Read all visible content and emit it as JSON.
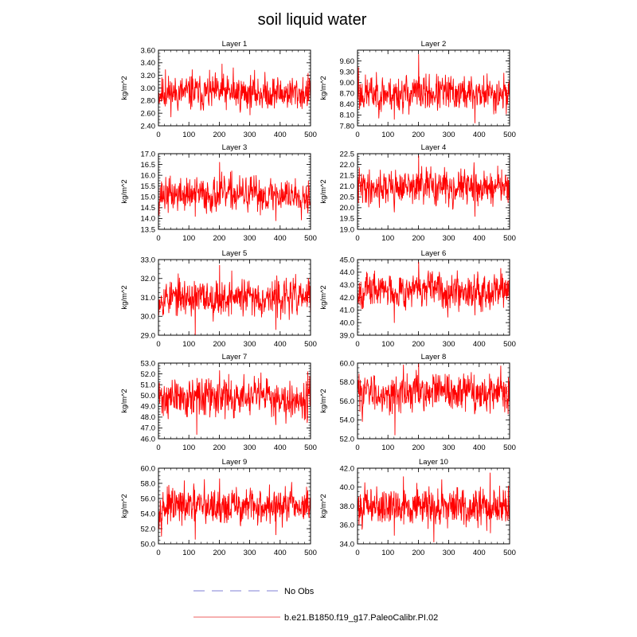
{
  "figure": {
    "title": "soil liquid water"
  },
  "legend": {
    "items": [
      {
        "label": "No Obs",
        "color": "#9999dd",
        "style": "dashed"
      },
      {
        "label": "b.e21.B1850.f19_g17.PaleoCalibr.PI.02",
        "color": "#f08080",
        "style": "solid"
      }
    ]
  },
  "chart_data": [
    {
      "type": "line",
      "title": "Layer 1",
      "ylabel": "kg/m^2",
      "xlim": [
        0,
        500
      ],
      "ylim": [
        2.4,
        3.6
      ],
      "xticks": [
        "0",
        "100",
        "200",
        "300",
        "400",
        "500"
      ],
      "yticks": [
        "2.40",
        "2.60",
        "2.80",
        "3.00",
        "3.20",
        "3.40",
        "3.60"
      ],
      "series": [
        {
          "color": "#ff0000",
          "n_points": 500,
          "mean": 2.92,
          "amplitude": 0.13,
          "seed": 11,
          "spikes": [
            [
              208,
              3.38
            ],
            [
              245,
              3.32
            ],
            [
              110,
              3.29
            ],
            [
              22,
              3.29
            ]
          ]
        }
      ]
    },
    {
      "type": "line",
      "title": "Layer 2",
      "ylabel": "kg/m^2",
      "xlim": [
        0,
        500
      ],
      "ylim": [
        7.8,
        9.9
      ],
      "xticks": [
        "0",
        "100",
        "200",
        "300",
        "400",
        "500"
      ],
      "yticks": [
        "7.80",
        "8.10",
        "8.40",
        "8.70",
        "9.00",
        "9.30",
        "9.60"
      ],
      "series": [
        {
          "color": "#ff0000",
          "n_points": 500,
          "mean": 8.7,
          "amplitude": 0.24,
          "seed": 23,
          "spikes": [
            [
              200,
              9.78
            ],
            [
              2,
              9.42
            ],
            [
              385,
              7.88
            ],
            [
              120,
              7.98
            ]
          ]
        }
      ]
    },
    {
      "type": "line",
      "title": "Layer 3",
      "ylabel": "kg/m^2",
      "xlim": [
        0,
        500
      ],
      "ylim": [
        13.5,
        17.0
      ],
      "xticks": [
        "0",
        "100",
        "200",
        "300",
        "400",
        "500"
      ],
      "yticks": [
        "13.5",
        "14.0",
        "14.5",
        "15.0",
        "15.5",
        "16.0",
        "16.5",
        "17.0"
      ],
      "series": [
        {
          "color": "#ff0000",
          "n_points": 500,
          "mean": 15.1,
          "amplitude": 0.38,
          "seed": 37,
          "spikes": [
            [
              200,
              16.6
            ],
            [
              240,
              16.2
            ],
            [
              385,
              13.9
            ],
            [
              120,
              14.1
            ]
          ]
        }
      ]
    },
    {
      "type": "line",
      "title": "Layer 4",
      "ylabel": "kg/m^2",
      "xlim": [
        0,
        500
      ],
      "ylim": [
        19.0,
        22.5
      ],
      "xticks": [
        "0",
        "100",
        "200",
        "300",
        "400",
        "500"
      ],
      "yticks": [
        "19.0",
        "19.5",
        "20.0",
        "20.5",
        "21.0",
        "21.5",
        "22.0",
        "22.5"
      ],
      "series": [
        {
          "color": "#ff0000",
          "n_points": 500,
          "mean": 20.95,
          "amplitude": 0.38,
          "seed": 41,
          "spikes": [
            [
              200,
              22.4
            ],
            [
              240,
              21.9
            ],
            [
              385,
              19.6
            ],
            [
              120,
              19.8
            ]
          ]
        }
      ]
    },
    {
      "type": "line",
      "title": "Layer 5",
      "ylabel": "kg/m^2",
      "xlim": [
        0,
        500
      ],
      "ylim": [
        29.0,
        33.0
      ],
      "xticks": [
        "0",
        "100",
        "200",
        "300",
        "400",
        "500"
      ],
      "yticks": [
        "29.0",
        "30.0",
        "31.0",
        "32.0",
        "33.0"
      ],
      "series": [
        {
          "color": "#ff0000",
          "n_points": 500,
          "mean": 31.0,
          "amplitude": 0.45,
          "seed": 53,
          "spikes": [
            [
              200,
              32.7
            ],
            [
              240,
              32.4
            ],
            [
              120,
              29.0
            ],
            [
              385,
              29.3
            ]
          ]
        }
      ]
    },
    {
      "type": "line",
      "title": "Layer 6",
      "ylabel": "kg/m^2",
      "xlim": [
        0,
        500
      ],
      "ylim": [
        39.0,
        45.0
      ],
      "xticks": [
        "0",
        "100",
        "200",
        "300",
        "400",
        "500"
      ],
      "yticks": [
        "39.0",
        "40.0",
        "41.0",
        "42.0",
        "43.0",
        "44.0",
        "45.0"
      ],
      "series": [
        {
          "color": "#ff0000",
          "n_points": 500,
          "mean": 42.6,
          "amplitude": 0.65,
          "seed": 67,
          "spikes": [
            [
              200,
              44.8
            ],
            [
              470,
              44.3
            ],
            [
              120,
              40.0
            ],
            [
              385,
              40.6
            ]
          ]
        }
      ]
    },
    {
      "type": "line",
      "title": "Layer 7",
      "ylabel": "kg/m^2",
      "xlim": [
        0,
        500
      ],
      "ylim": [
        46.0,
        53.0
      ],
      "xticks": [
        "0",
        "100",
        "200",
        "300",
        "400",
        "500"
      ],
      "yticks": [
        "46.0",
        "47.0",
        "48.0",
        "49.0",
        "50.0",
        "51.0",
        "52.0",
        "53.0"
      ],
      "series": [
        {
          "color": "#ff0000",
          "n_points": 500,
          "mean": 49.8,
          "amplitude": 0.85,
          "seed": 71,
          "spikes": [
            [
              200,
              52.3
            ],
            [
              490,
              52.2
            ],
            [
              125,
              46.4
            ],
            [
              385,
              47.3
            ]
          ]
        }
      ]
    },
    {
      "type": "line",
      "title": "Layer 8",
      "ylabel": "kg/m^2",
      "xlim": [
        0,
        500
      ],
      "ylim": [
        52.0,
        60.0
      ],
      "xticks": [
        "0",
        "100",
        "200",
        "300",
        "400",
        "500"
      ],
      "yticks": [
        "52.0",
        "54.0",
        "56.0",
        "58.0",
        "60.0"
      ],
      "series": [
        {
          "color": "#ff0000",
          "n_points": 500,
          "mean": 56.9,
          "amplitude": 0.95,
          "seed": 83,
          "spikes": [
            [
              150,
              59.8
            ],
            [
              200,
              59.9
            ],
            [
              470,
              59.7
            ],
            [
              122,
              52.4
            ]
          ]
        }
      ]
    },
    {
      "type": "line",
      "title": "Layer 9",
      "ylabel": "kg/m^2",
      "xlim": [
        0,
        500
      ],
      "ylim": [
        50.0,
        60.0
      ],
      "xticks": [
        "0",
        "100",
        "200",
        "300",
        "400",
        "500"
      ],
      "yticks": [
        "50.0",
        "52.0",
        "54.0",
        "56.0",
        "58.0",
        "60.0"
      ],
      "series": [
        {
          "color": "#ff0000",
          "n_points": 500,
          "mean": 54.9,
          "amplitude": 1.15,
          "seed": 97,
          "spikes": [
            [
              150,
              58.5
            ],
            [
              200,
              58.6
            ],
            [
              120,
              50.6
            ],
            [
              385,
              51.2
            ]
          ]
        }
      ]
    },
    {
      "type": "line",
      "title": "Layer 10",
      "ylabel": "kg/m^2",
      "xlim": [
        0,
        500
      ],
      "ylim": [
        34.0,
        42.0
      ],
      "xticks": [
        "0",
        "100",
        "200",
        "300",
        "400",
        "500"
      ],
      "yticks": [
        "34.0",
        "36.0",
        "38.0",
        "40.0",
        "42.0"
      ],
      "series": [
        {
          "color": "#ff0000",
          "n_points": 500,
          "mean": 38.0,
          "amplitude": 0.95,
          "seed": 101,
          "spikes": [
            [
              435,
              41.5
            ],
            [
              150,
              41.1
            ],
            [
              250,
              34.2
            ],
            [
              120,
              34.9
            ]
          ]
        }
      ]
    }
  ]
}
